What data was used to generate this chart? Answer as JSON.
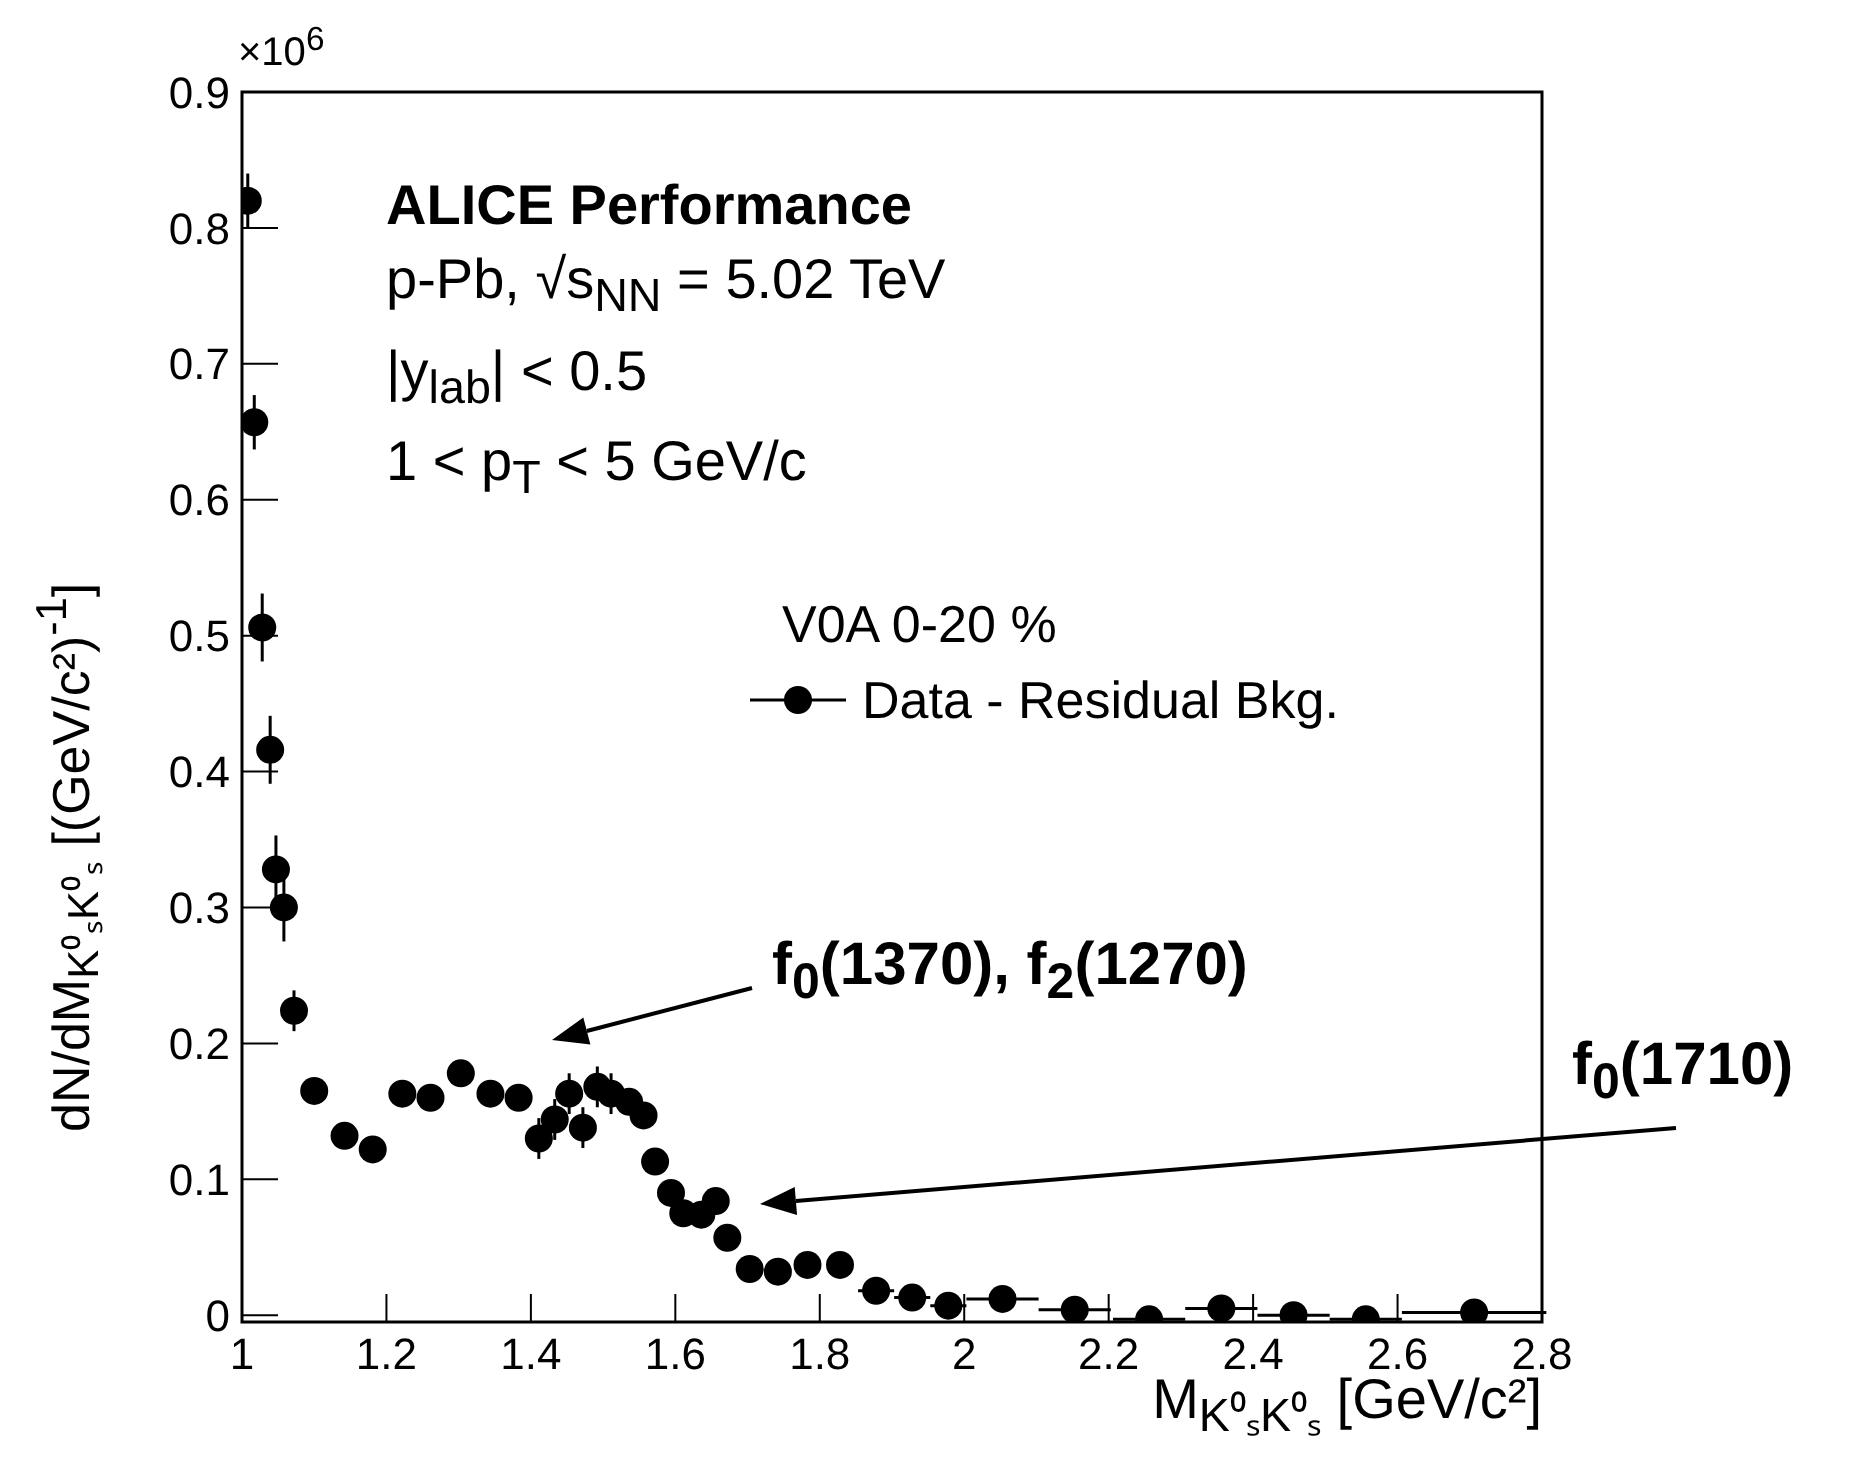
{
  "chart_data": {
    "type": "scatter",
    "xlabel": "M$_{K⁰ₛK⁰ₛ}$ [GeV/c²]",
    "ylabel": "dN/dM$_{K⁰ₛK⁰ₛ}$ [(GeV/c²)$^{-1}$]",
    "legend_title": "V0A 0-20 %",
    "annotations": [
      "ALICE Performance",
      "p-Pb, √s$_{NN}$ = 5.02 TeV",
      "|y$_{lab}$| < 0.5",
      "1 < p$_{T}$ < 5 GeV/c",
      "×10$^{6}$",
      "f$_{0}$(1370), f$_{2}$(1270)",
      "f$_{0}$(1710)"
    ],
    "x": [
      1.008,
      1.017,
      1.028,
      1.039,
      1.047,
      1.058,
      1.072,
      1.1,
      1.142,
      1.181,
      1.222,
      1.261,
      1.303,
      1.344,
      1.383,
      1.411,
      1.433,
      1.453,
      1.472,
      1.492,
      1.511,
      1.536,
      1.556,
      1.572,
      1.594,
      1.611,
      1.636,
      1.656,
      1.672,
      1.703,
      1.742,
      1.783,
      1.828,
      1.878,
      1.928,
      1.978,
      2.053,
      2.153,
      2.256,
      2.356,
      2.456,
      2.556,
      2.706
    ],
    "series": [
      {
        "name": "Data - Residual Bkg.",
        "color": "#000000",
        "values": [
          0.82,
          0.657,
          0.506,
          0.416,
          0.328,
          0.3,
          0.224,
          0.165,
          0.132,
          0.122,
          0.163,
          0.16,
          0.178,
          0.163,
          0.16,
          0.13,
          0.144,
          0.163,
          0.138,
          0.168,
          0.163,
          0.157,
          0.147,
          0.113,
          0.09,
          0.075,
          0.074,
          0.084,
          0.057,
          0.034,
          0.032,
          0.037,
          0.037,
          0.018,
          0.013,
          0.007,
          0.012,
          0.004,
          -0.003,
          0.005,
          0,
          -0.003,
          0.002
        ],
        "errors": [
          0.02,
          0.02,
          0.025,
          0.025,
          0.025,
          0.025,
          0.015,
          null,
          null,
          null,
          null,
          null,
          null,
          null,
          null,
          0.015,
          0.015,
          0.015,
          0.015,
          0.015,
          0.015,
          null,
          null,
          null,
          null,
          null,
          null,
          null,
          null,
          null,
          null,
          null,
          null,
          null,
          null,
          null,
          null,
          null,
          null,
          null,
          null,
          null,
          null
        ],
        "xerrors": [
          null,
          null,
          null,
          null,
          null,
          null,
          null,
          null,
          null,
          null,
          null,
          null,
          null,
          null,
          null,
          null,
          null,
          null,
          null,
          null,
          null,
          null,
          null,
          null,
          null,
          null,
          null,
          null,
          null,
          null,
          null,
          null,
          null,
          0.025,
          0.025,
          0.025,
          0.05,
          0.05,
          0.05,
          0.05,
          0.05,
          0.05,
          0.1
        ]
      }
    ],
    "xlim": [
      1,
      2.8
    ],
    "xticks": [
      1,
      1.2,
      1.4,
      1.6,
      1.8,
      2,
      2.2,
      2.4,
      2.6,
      2.8
    ],
    "ylim": [
      -0.005,
      0.9
    ],
    "yticks": [
      0,
      0.1,
      0.2,
      0.3,
      0.4,
      0.5,
      0.6,
      0.7,
      0.8,
      0.9
    ],
    "marker": "circle",
    "grid": false,
    "legend": "right"
  }
}
